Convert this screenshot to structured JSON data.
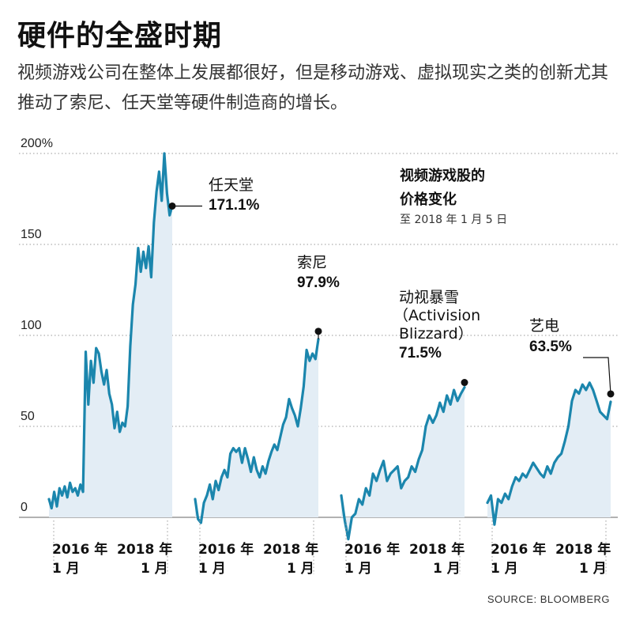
{
  "title": "硬件的全盛时期",
  "subtitle": "视频游戏公司在整体上发展都很好，但是移动游戏、虚拟现实之类的创新尤其推动了索尼、任天堂等硬件制造商的增长。",
  "legend": {
    "title_line1": "视频游戏股的",
    "title_line2": "价格变化",
    "subtitle": "至 2018 年 1 月 5 日"
  },
  "source": "SOURCE: BLOOMBERG",
  "chart_data": {
    "type": "area",
    "y_unit": "%",
    "ylim": [
      0,
      200
    ],
    "y_ticks": [
      "200%",
      "150",
      "100",
      "50",
      "0"
    ],
    "x_tick_labels": [
      {
        "year": "2016 年",
        "month": "1 月"
      },
      {
        "year": "2018 年",
        "month": "1 月"
      }
    ],
    "series": [
      {
        "name": "任天堂",
        "final_value": 171.1,
        "final_label": "171.1%",
        "values": [
          10,
          5,
          14,
          6,
          16,
          12,
          17,
          11,
          19,
          14,
          16,
          12,
          18,
          14,
          91,
          62,
          86,
          74,
          93,
          90,
          80,
          73,
          81,
          68,
          62,
          49,
          58,
          47,
          52,
          50,
          61,
          94,
          117,
          128,
          148,
          135,
          146,
          137,
          149,
          132,
          162,
          179,
          190,
          174,
          200,
          178,
          166,
          171.1
        ]
      },
      {
        "name": "索尼",
        "final_value": 97.9,
        "final_label": "97.9%",
        "values": [
          10,
          -1,
          -3,
          8,
          12,
          18,
          10,
          20,
          15,
          22,
          26,
          22,
          35,
          38,
          36,
          38,
          30,
          38,
          32,
          25,
          33,
          26,
          22,
          28,
          24,
          31,
          36,
          40,
          37,
          44,
          51,
          55,
          65,
          60,
          56,
          50,
          60,
          72,
          92,
          86,
          90,
          87,
          97.9
        ]
      },
      {
        "name": "动视暴雪（Activision Blizzard）",
        "name_line1": "动视暴雪",
        "name_line2": "（Activision",
        "name_line3": "Blizzard）",
        "final_value": 71.5,
        "final_label": "71.5%",
        "values": [
          12,
          -2,
          -12,
          0,
          2,
          10,
          7,
          16,
          12,
          24,
          20,
          26,
          31,
          20,
          24,
          26,
          28,
          16,
          20,
          22,
          28,
          25,
          32,
          37,
          50,
          56,
          52,
          56,
          63,
          58,
          67,
          62,
          70,
          64,
          68,
          71.5
        ]
      },
      {
        "name": "艺电",
        "final_value": 63.5,
        "final_label": "63.5%",
        "values": [
          8,
          12,
          -4,
          10,
          8,
          13,
          10,
          17,
          22,
          20,
          24,
          22,
          26,
          30,
          27,
          24,
          22,
          28,
          24,
          30,
          33,
          35,
          42,
          50,
          64,
          70,
          68,
          73,
          70,
          74,
          70,
          64,
          58,
          56,
          54,
          63.5
        ]
      }
    ]
  }
}
